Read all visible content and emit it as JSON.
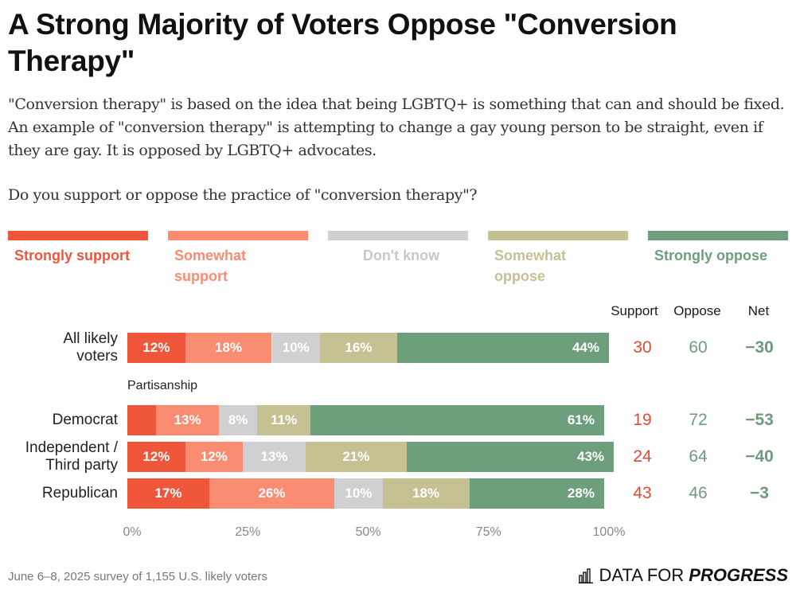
{
  "title": "A Strong Majority of Voters Oppose \"Conversion Therapy\"",
  "description": "\"Conversion therapy\" is based on the idea that being LGBTQ+ is something that can and should be fixed. An example of \"conversion therapy\" is attempting to change a gay young person to be straight, even if they are gay. It is opposed by LGBTQ+ advocates.",
  "question": "Do you support or oppose the practice of \"conversion therapy\"?",
  "colors": {
    "strongly_support": "#f0563a",
    "somewhat_support": "#fa8c72",
    "dont_know": "#d0d0d2",
    "somewhat_oppose": "#c5c193",
    "strongly_oppose": "#6e9f7c",
    "support_text": "#e04a35",
    "oppose_text": "#6e9a7e",
    "net_text": "#6e9a7e"
  },
  "columns": {
    "support": "Support",
    "oppose": "Oppose",
    "net": "Net"
  },
  "footer": {
    "note": "June 6–8, 2025 survey of 1,155 U.S. likely voters",
    "brand_regular": "DATA FOR",
    "brand_bold": "PROGRESS"
  },
  "chart_data": {
    "type": "bar",
    "orientation": "horizontal-stacked",
    "title": "A Strong Majority of Voters Oppose \"Conversion Therapy\"",
    "legend": [
      "Strongly support",
      "Somewhat support",
      "Don't know",
      "Somewhat oppose",
      "Strongly oppose"
    ],
    "legend_placement": "top",
    "xlim": [
      0,
      100
    ],
    "x_ticks": [
      "0%",
      "25%",
      "50%",
      "75%",
      "100%"
    ],
    "group_label": "Partisanship",
    "categories": [
      "All likely voters",
      "Democrat",
      "Independent / Third party",
      "Republican"
    ],
    "series": [
      {
        "name": "Strongly support",
        "values": [
          12,
          6,
          12,
          17
        ],
        "labels": [
          "12%",
          "",
          "12%",
          "17%"
        ]
      },
      {
        "name": "Somewhat support",
        "values": [
          18,
          13,
          12,
          26
        ],
        "labels": [
          "18%",
          "13%",
          "12%",
          "26%"
        ]
      },
      {
        "name": "Don't know",
        "values": [
          10,
          8,
          13,
          10
        ],
        "labels": [
          "10%",
          "8%",
          "13%",
          "10%"
        ]
      },
      {
        "name": "Somewhat oppose",
        "values": [
          16,
          11,
          21,
          18
        ],
        "labels": [
          "16%",
          "11%",
          "21%",
          "18%"
        ]
      },
      {
        "name": "Strongly oppose",
        "values": [
          44,
          61,
          43,
          28
        ],
        "labels": [
          "44%",
          "61%",
          "43%",
          "28%"
        ]
      }
    ],
    "support": [
      "30",
      "19",
      "24",
      "43"
    ],
    "oppose": [
      "60",
      "72",
      "64",
      "46"
    ],
    "net": [
      "−30",
      "−53",
      "−40",
      "−3"
    ]
  }
}
